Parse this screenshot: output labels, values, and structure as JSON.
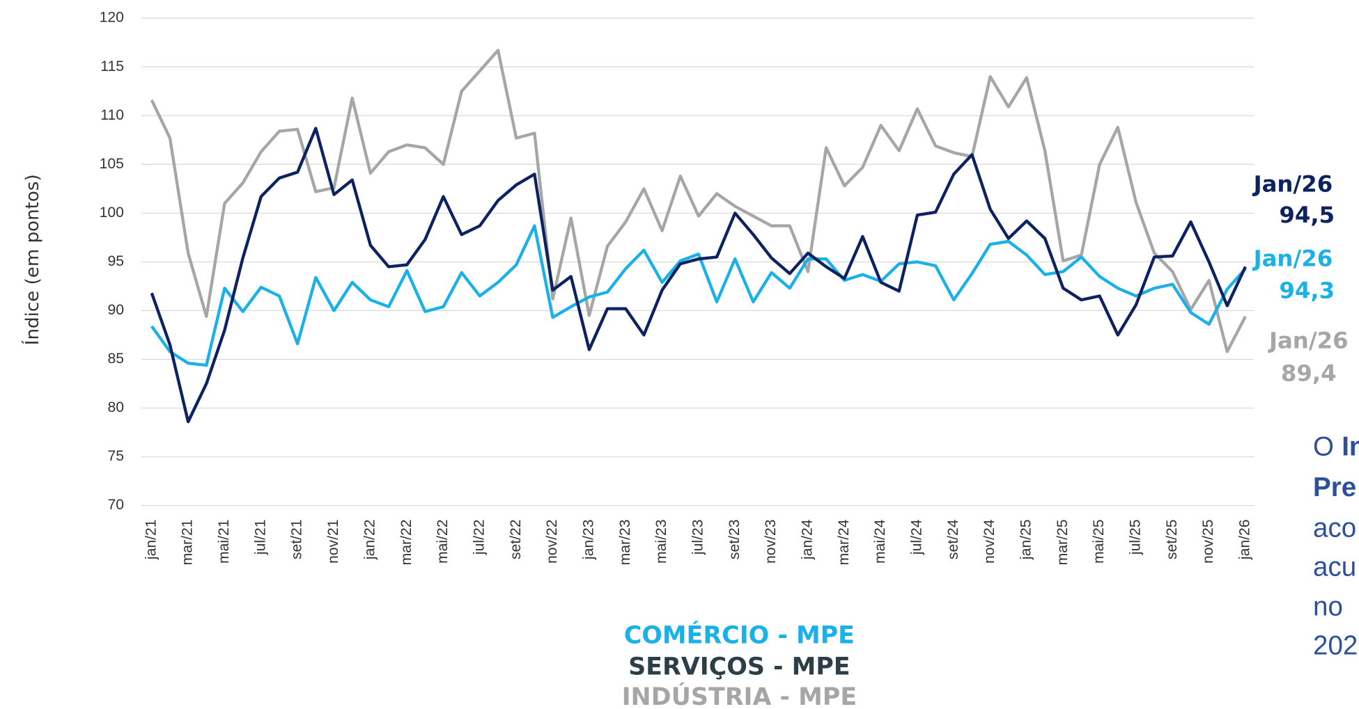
{
  "chart_data": {
    "type": "line",
    "y_label": "Índice (em pontos)",
    "categories": [
      "jan/21",
      null,
      "mar/21",
      null,
      "mai/21",
      null,
      "jul/21",
      null,
      "set/21",
      null,
      "nov/21",
      null,
      "jan/22",
      null,
      "mar/22",
      null,
      "mai/22",
      null,
      "jul/22",
      null,
      "set/22",
      null,
      "nov/22",
      null,
      "jan/23",
      null,
      "mar/23",
      null,
      "mai/23",
      null,
      "jul/23",
      null,
      "set/23",
      null,
      "nov/23",
      null,
      "jan/24",
      null,
      "mar/24",
      null,
      "mai/24",
      null,
      "jul/24",
      null,
      "set/24",
      null,
      "nov/24",
      null,
      "jan/25",
      null,
      "mar/25",
      null,
      "mai/25",
      null,
      "jul/25",
      null,
      "set/25",
      null,
      "nov/25",
      null,
      "jan/26"
    ],
    "series": [
      {
        "name": "COMÉRCIO - MPE",
        "color": "#1ab0e8",
        "values": [
          88.4,
          85.8,
          84.6,
          84.4,
          92.3,
          89.9,
          92.4,
          91.5,
          86.6,
          93.4,
          90.0,
          92.9,
          91.1,
          90.4,
          94.1,
          89.9,
          90.4,
          93.9,
          91.5,
          92.9,
          94.7,
          98.7,
          89.3,
          90.4,
          91.4,
          91.9,
          94.3,
          96.2,
          92.9,
          95.1,
          95.8,
          90.9,
          95.3,
          90.9,
          93.9,
          92.3,
          95.3,
          95.3,
          93.1,
          93.7,
          93.0,
          94.8,
          95.0,
          94.6,
          91.1,
          93.8,
          96.8,
          97.1,
          95.7,
          93.7,
          94.0,
          95.5,
          93.5,
          92.3,
          91.5,
          92.3,
          92.7,
          89.8,
          88.6,
          92.2,
          94.3
        ]
      },
      {
        "name": "SERVIÇOS - MPE",
        "color": "#0d2260",
        "values": [
          91.8,
          86.5,
          78.6,
          82.5,
          88.0,
          95.4,
          101.7,
          103.6,
          104.2,
          108.7,
          101.9,
          103.4,
          96.7,
          94.5,
          94.7,
          97.3,
          101.7,
          97.8,
          98.7,
          101.3,
          102.9,
          104.0,
          92.1,
          93.5,
          86.0,
          90.2,
          90.2,
          87.5,
          92.1,
          94.8,
          95.3,
          95.5,
          100.0,
          97.8,
          95.4,
          93.8,
          95.9,
          94.5,
          93.3,
          97.6,
          92.9,
          92.0,
          99.8,
          100.1,
          104.0,
          106.0,
          100.4,
          97.4,
          99.2,
          97.4,
          92.3,
          91.1,
          91.5,
          87.5,
          90.6,
          95.5,
          95.6,
          99.1,
          95.0,
          90.5,
          94.5
        ]
      },
      {
        "name": "INDÚSTRIA - MPE",
        "color": "#a6a6a6",
        "values": [
          111.6,
          107.7,
          95.9,
          89.4,
          101.0,
          103.1,
          106.3,
          108.4,
          108.6,
          102.2,
          102.6,
          111.8,
          104.1,
          106.3,
          107.0,
          106.7,
          105.0,
          112.5,
          114.6,
          116.7,
          107.7,
          108.2,
          91.2,
          99.5,
          89.5,
          96.6,
          99.1,
          102.5,
          98.2,
          103.8,
          99.7,
          102.0,
          100.7,
          99.7,
          98.7,
          98.7,
          94.0,
          106.7,
          102.8,
          104.7,
          109.0,
          106.4,
          110.7,
          106.9,
          106.2,
          105.8,
          114.0,
          110.9,
          113.9,
          106.4,
          95.1,
          95.7,
          105.0,
          108.8,
          101.1,
          95.9,
          94.0,
          90.1,
          93.1,
          85.8,
          89.4
        ]
      }
    ],
    "end_labels": [
      {
        "period": "Jan/26",
        "value": "94,5",
        "color": "#0d2260"
      },
      {
        "period": "Jan/26",
        "value": "94,3",
        "color": "#1ab0e8"
      },
      {
        "period": "Jan/26",
        "value": "89,4",
        "color": "#a6a6a6"
      }
    ],
    "ylim": [
      70,
      120
    ],
    "yticks": [
      70,
      75,
      80,
      85,
      90,
      95,
      100,
      105,
      110,
      115,
      120
    ],
    "grid": true
  },
  "side_text": [
    [
      {
        "text": "O",
        "bold": false
      },
      {
        "text": "In",
        "bold": true
      }
    ],
    [
      {
        "text": "Pre",
        "bold": true
      }
    ],
    [
      {
        "text": "aco",
        "bold": false
      }
    ],
    [
      {
        "text": "acu",
        "bold": false
      }
    ],
    [
      {
        "text": "no",
        "bold": false
      }
    ],
    [
      {
        "text": "202",
        "bold": false
      }
    ]
  ]
}
